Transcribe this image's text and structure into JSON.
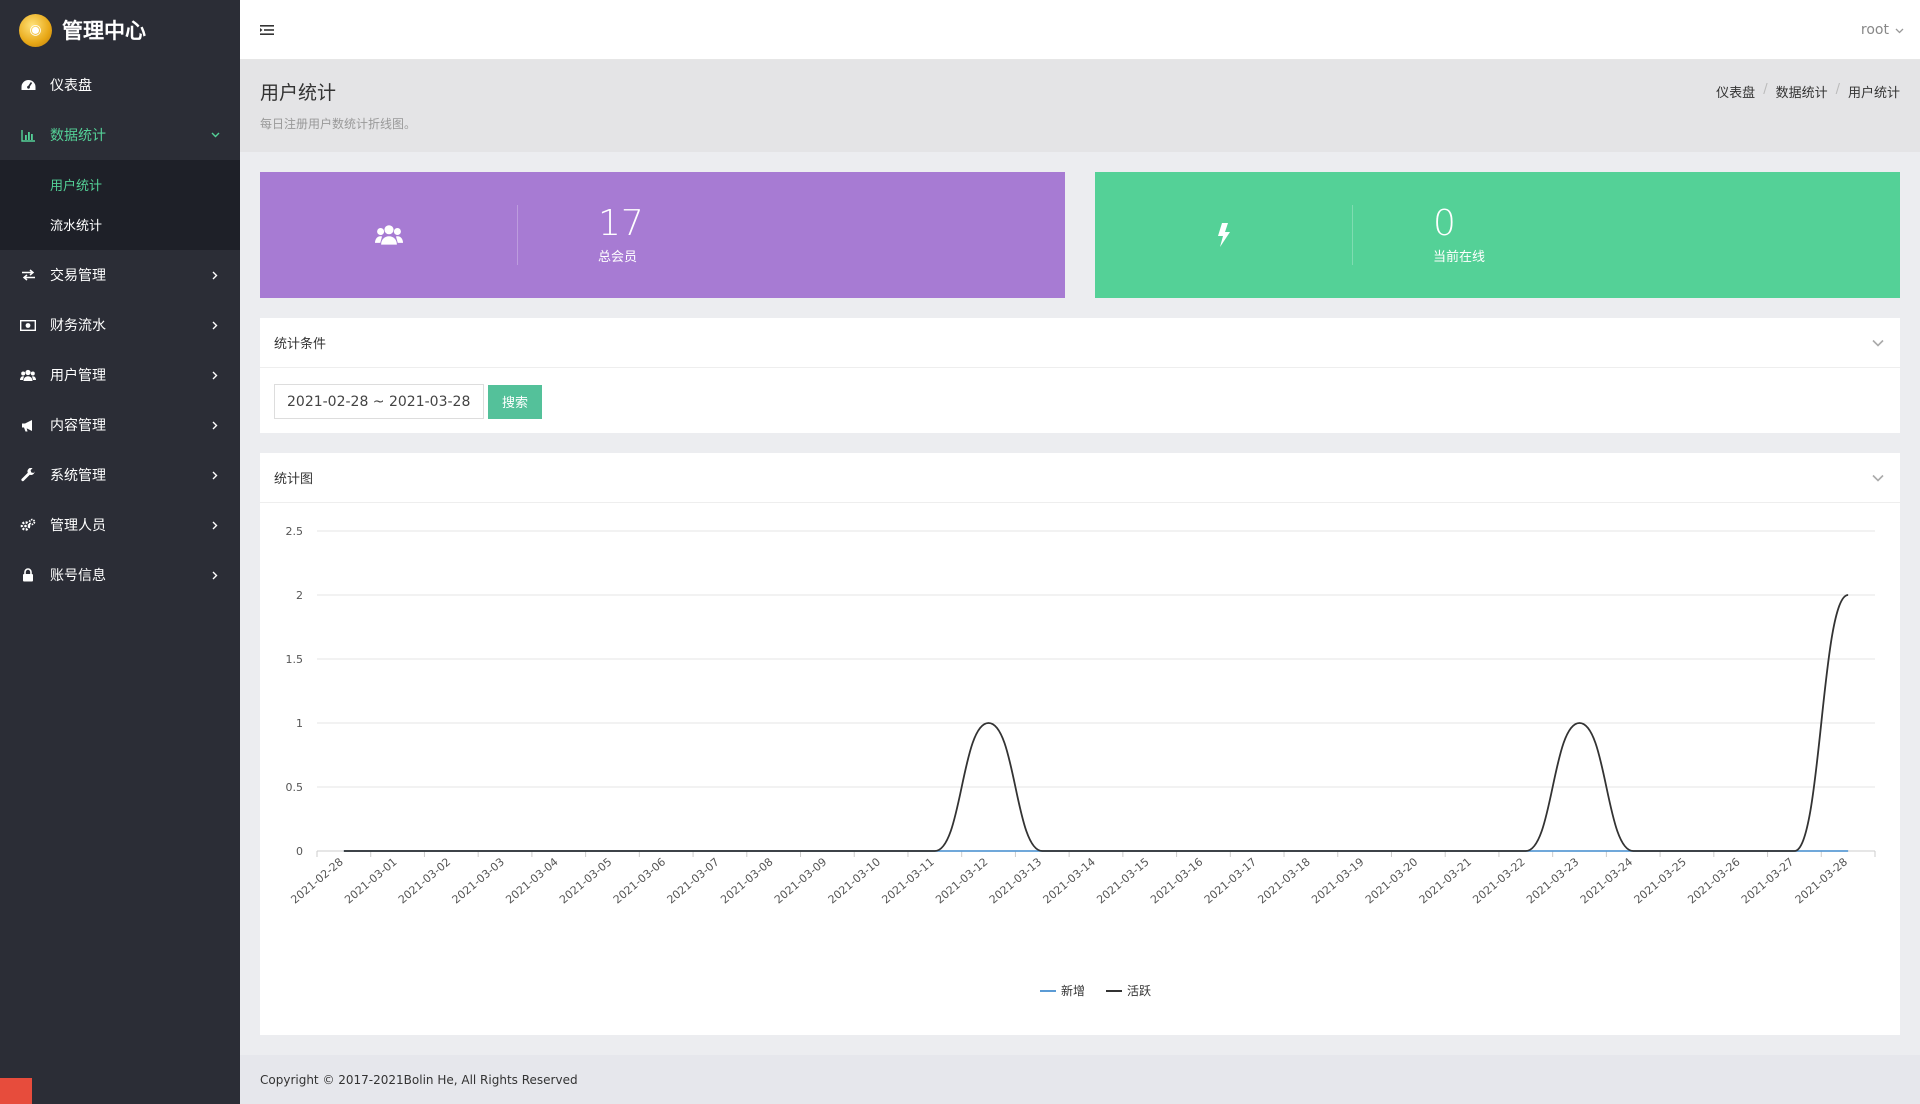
{
  "brand": {
    "title": "管理中心"
  },
  "topbar": {
    "user": "root"
  },
  "sidebar": {
    "items": [
      {
        "label": "仪表盘",
        "icon": "dashboard-icon"
      },
      {
        "label": "数据统计",
        "icon": "bar-chart-icon",
        "active": true,
        "children": [
          {
            "label": "用户统计",
            "active": true
          },
          {
            "label": "流水统计"
          }
        ]
      },
      {
        "label": "交易管理",
        "icon": "exchange-icon"
      },
      {
        "label": "财务流水",
        "icon": "money-icon"
      },
      {
        "label": "用户管理",
        "icon": "users-icon"
      },
      {
        "label": "内容管理",
        "icon": "bullhorn-icon"
      },
      {
        "label": "系统管理",
        "icon": "wrench-icon"
      },
      {
        "label": "管理人员",
        "icon": "gears-icon"
      },
      {
        "label": "账号信息",
        "icon": "lock-icon"
      }
    ]
  },
  "header": {
    "title": "用户统计",
    "subtitle": "每日注册用户数统计折线图。",
    "breadcrumb": [
      "仪表盘",
      "数据统计",
      "用户统计"
    ]
  },
  "cards": {
    "total": {
      "value": "17",
      "label": "总会员",
      "color": "#a77bd3"
    },
    "online": {
      "value": "0",
      "label": "当前在线",
      "color": "#54d197"
    }
  },
  "filter": {
    "title": "统计条件",
    "date_range": "2021-02-28 ~ 2021-03-28",
    "search_label": "搜索"
  },
  "chart_panel": {
    "title": "统计图"
  },
  "chart_data": {
    "type": "line",
    "categories": [
      "2021-02-28",
      "2021-03-01",
      "2021-03-02",
      "2021-03-03",
      "2021-03-04",
      "2021-03-05",
      "2021-03-06",
      "2021-03-07",
      "2021-03-08",
      "2021-03-09",
      "2021-03-10",
      "2021-03-11",
      "2021-03-12",
      "2021-03-13",
      "2021-03-14",
      "2021-03-15",
      "2021-03-16",
      "2021-03-17",
      "2021-03-18",
      "2021-03-19",
      "2021-03-20",
      "2021-03-21",
      "2021-03-22",
      "2021-03-23",
      "2021-03-24",
      "2021-03-25",
      "2021-03-26",
      "2021-03-27",
      "2021-03-28"
    ],
    "series": [
      {
        "name": "新增",
        "color": "#5b9bd5",
        "values": [
          0,
          0,
          0,
          0,
          0,
          0,
          0,
          0,
          0,
          0,
          0,
          0,
          0,
          0,
          0,
          0,
          0,
          0,
          0,
          0,
          0,
          0,
          0,
          0,
          0,
          0,
          0,
          0,
          0
        ]
      },
      {
        "name": "活跃",
        "color": "#333333",
        "values": [
          0,
          0,
          0,
          0,
          0,
          0,
          0,
          0,
          0,
          0,
          0,
          0,
          1,
          0,
          0,
          0,
          0,
          0,
          0,
          0,
          0,
          0,
          0,
          1,
          0,
          0,
          0,
          0,
          2
        ]
      }
    ],
    "ylim": [
      0,
      2.5
    ],
    "yticks": [
      0,
      0.5,
      1,
      1.5,
      2,
      2.5
    ],
    "grid": true,
    "legend": "bottom-center"
  },
  "footer": {
    "text": "Copyright © 2017-2021Bolin He, All Rights Reserved"
  }
}
